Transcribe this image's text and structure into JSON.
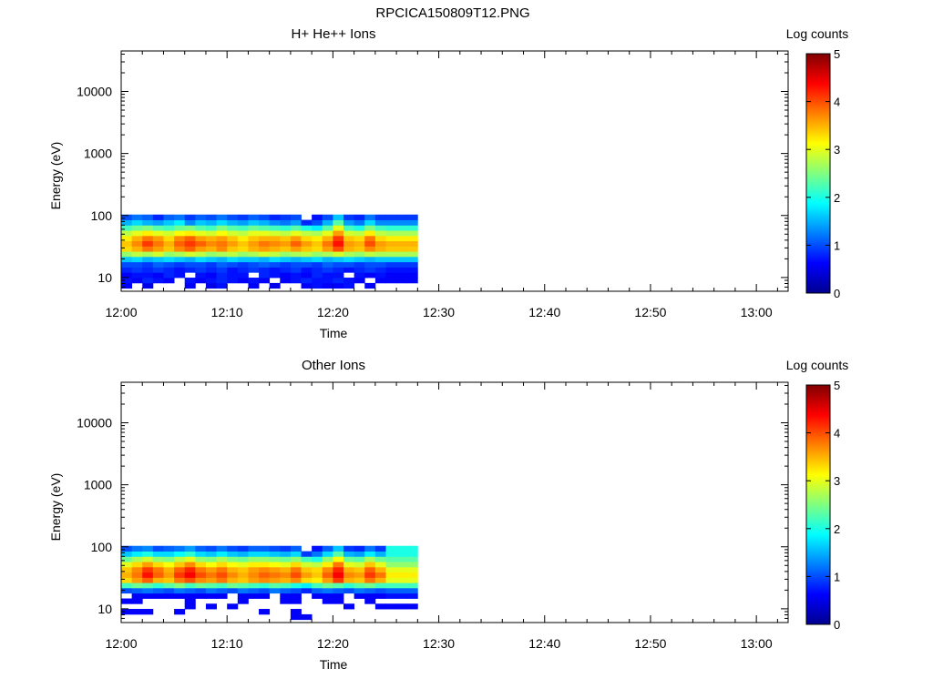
{
  "figure": {
    "title": "RPCICA150809T12.PNG"
  },
  "colors": {
    "colormap": [
      "#00008f",
      "#0000ff",
      "#0080ff",
      "#00ffff",
      "#80ff80",
      "#ffff00",
      "#ff8000",
      "#ff0000",
      "#800000"
    ],
    "axis": "#000000",
    "background": "#ffffff"
  },
  "chart_data": [
    {
      "type": "heatmap",
      "title": "H+ He++ Ions",
      "xlabel": "Time",
      "ylabel": "Energy (eV)",
      "x_range": [
        "12:00",
        "13:03"
      ],
      "x_ticks": [
        "12:00",
        "12:10",
        "12:20",
        "12:30",
        "12:40",
        "12:50",
        "13:00"
      ],
      "y_scale": "log",
      "y_range": [
        6,
        45000
      ],
      "y_ticks": [
        "10",
        "100",
        "1000",
        "10000"
      ],
      "colorbar": {
        "label": "Log counts",
        "range": [
          0,
          5
        ],
        "ticks": [
          "0",
          "1",
          "2",
          "3",
          "4",
          "5"
        ]
      },
      "time_bins": [
        "12:00:30",
        "12:01:30",
        "12:02:30",
        "12:03:30",
        "12:04:30",
        "12:05:30",
        "12:06:30",
        "12:07:30",
        "12:08:30",
        "12:09:30",
        "12:10:30",
        "12:11:30",
        "12:12:30",
        "12:13:30",
        "12:14:30",
        "12:15:30",
        "12:16:30",
        "12:17:30",
        "12:18:30",
        "12:19:30",
        "12:20:30",
        "12:21:30",
        "12:22:30",
        "12:23:30",
        "12:24:30",
        "12:25:30",
        "12:26:30",
        "12:27:30"
      ],
      "energy_bins_eV": [
        7.4,
        9.0,
        11,
        13.3,
        16.2,
        19.7,
        24,
        29,
        35.4,
        43,
        52,
        63.5,
        77,
        93.8
      ],
      "log_counts": [
        [
          0.6,
          null,
          0.5,
          null,
          null,
          null,
          0.6,
          null,
          0.5,
          0.7,
          null,
          null,
          0.6,
          null,
          0.5,
          null,
          null,
          0.6,
          0.7,
          0.6,
          0.6,
          0.7,
          null,
          0.6,
          null,
          null,
          null,
          null
        ],
        [
          0.7,
          0.6,
          0.8,
          0.7,
          0.6,
          null,
          0.7,
          0.6,
          0.7,
          0.8,
          0.7,
          0.6,
          0.7,
          0.6,
          null,
          0.6,
          0.7,
          0.8,
          0.7,
          0.7,
          0.8,
          0.7,
          0.6,
          null,
          0.6,
          0.6,
          0.6,
          0.6
        ],
        [
          0.6,
          0.7,
          0.7,
          0.6,
          0.8,
          0.7,
          null,
          0.7,
          0.6,
          0.8,
          0.7,
          0.7,
          null,
          0.8,
          0.7,
          0.6,
          0.7,
          0.6,
          0.8,
          0.7,
          0.7,
          null,
          0.7,
          0.6,
          0.7,
          0.6,
          0.6,
          0.6
        ],
        [
          0.8,
          0.9,
          0.8,
          0.9,
          0.8,
          0.7,
          0.8,
          0.9,
          0.8,
          0.9,
          0.7,
          0.8,
          0.9,
          0.8,
          0.7,
          0.8,
          0.9,
          0.7,
          0.8,
          0.9,
          0.8,
          0.7,
          0.8,
          0.9,
          0.8,
          0.7,
          0.7,
          0.7
        ],
        [
          1.0,
          1.0,
          0.9,
          1.1,
          1.0,
          0.9,
          1.0,
          1.0,
          0.9,
          1.1,
          1.0,
          0.9,
          1.0,
          1.1,
          1.0,
          0.9,
          1.0,
          1.0,
          0.9,
          1.1,
          1.0,
          1.0,
          0.9,
          1.0,
          1.0,
          0.9,
          0.9,
          0.9
        ],
        [
          1.6,
          1.7,
          1.5,
          1.6,
          1.7,
          1.6,
          1.5,
          1.7,
          1.6,
          1.5,
          1.7,
          1.6,
          1.6,
          1.5,
          1.7,
          1.6,
          1.5,
          1.6,
          1.7,
          1.5,
          1.6,
          1.7,
          1.6,
          1.5,
          1.6,
          1.6,
          1.6,
          1.6
        ],
        [
          2.6,
          2.8,
          2.7,
          2.9,
          2.6,
          2.7,
          2.9,
          2.8,
          2.6,
          2.7,
          2.8,
          2.6,
          2.7,
          2.9,
          2.8,
          2.6,
          2.7,
          2.8,
          2.6,
          2.7,
          2.9,
          2.7,
          2.6,
          2.8,
          2.7,
          2.7,
          2.7,
          2.7
        ],
        [
          3.3,
          3.5,
          3.8,
          3.6,
          3.4,
          3.7,
          3.9,
          3.6,
          3.5,
          3.7,
          3.4,
          3.3,
          3.5,
          3.6,
          3.5,
          3.4,
          3.6,
          3.4,
          3.3,
          3.6,
          4.0,
          3.5,
          3.4,
          3.7,
          3.5,
          3.4,
          3.4,
          3.4
        ],
        [
          3.4,
          3.7,
          4.1,
          3.8,
          3.5,
          3.9,
          4.1,
          3.9,
          3.7,
          3.8,
          3.6,
          3.4,
          3.6,
          3.8,
          3.7,
          3.6,
          3.9,
          3.6,
          3.4,
          3.8,
          4.3,
          3.6,
          3.5,
          4.0,
          3.6,
          3.5,
          3.5,
          3.5
        ],
        [
          3.2,
          3.5,
          3.8,
          3.6,
          3.3,
          3.7,
          3.9,
          3.6,
          3.5,
          3.6,
          3.4,
          3.2,
          3.4,
          3.5,
          3.5,
          3.4,
          3.6,
          3.3,
          3.2,
          3.5,
          4.1,
          3.4,
          3.3,
          3.8,
          3.3,
          3.2,
          3.2,
          3.2
        ],
        [
          2.8,
          3.0,
          3.2,
          3.0,
          2.9,
          3.1,
          3.2,
          3.0,
          2.9,
          3.1,
          2.9,
          2.8,
          3.0,
          3.0,
          2.9,
          2.8,
          3.0,
          2.8,
          2.7,
          3.0,
          3.6,
          2.9,
          2.8,
          3.2,
          2.8,
          2.7,
          2.7,
          2.7
        ],
        [
          2.2,
          2.4,
          2.5,
          2.3,
          2.2,
          2.4,
          2.5,
          2.3,
          2.2,
          2.5,
          2.3,
          2.2,
          2.4,
          2.3,
          2.2,
          2.1,
          2.3,
          2.0,
          1.8,
          2.3,
          3.0,
          2.2,
          2.0,
          2.5,
          2.2,
          2.1,
          2.1,
          2.1
        ],
        [
          1.5,
          1.7,
          1.5,
          1.4,
          1.6,
          1.8,
          1.3,
          1.6,
          1.5,
          1.7,
          1.5,
          1.4,
          1.6,
          1.5,
          1.3,
          1.2,
          1.4,
          0.8,
          1.0,
          1.5,
          2.3,
          1.4,
          1.2,
          1.7,
          1.3,
          1.3,
          1.3,
          1.3
        ],
        [
          1.0,
          1.2,
          1.1,
          0.8,
          1.1,
          1.2,
          0.9,
          1.1,
          1.0,
          1.2,
          1.0,
          0.9,
          1.1,
          1.0,
          0.8,
          0.9,
          1.0,
          null,
          0.7,
          1.0,
          1.6,
          0.9,
          0.8,
          1.2,
          0.9,
          0.9,
          0.9,
          0.9
        ]
      ]
    },
    {
      "type": "heatmap",
      "title": "Other Ions",
      "xlabel": "Time",
      "ylabel": "Energy (eV)",
      "x_range": [
        "12:00",
        "13:03"
      ],
      "x_ticks": [
        "12:00",
        "12:10",
        "12:20",
        "12:30",
        "12:40",
        "12:50",
        "13:00"
      ],
      "y_scale": "log",
      "y_range": [
        6,
        45000
      ],
      "y_ticks": [
        "10",
        "100",
        "1000",
        "10000"
      ],
      "colorbar": {
        "label": "Log counts",
        "range": [
          0,
          5
        ],
        "ticks": [
          "0",
          "1",
          "2",
          "3",
          "4",
          "5"
        ]
      },
      "time_bins": [
        "12:00:30",
        "12:01:30",
        "12:02:30",
        "12:03:30",
        "12:04:30",
        "12:05:30",
        "12:06:30",
        "12:07:30",
        "12:08:30",
        "12:09:30",
        "12:10:30",
        "12:11:30",
        "12:12:30",
        "12:13:30",
        "12:14:30",
        "12:15:30",
        "12:16:30",
        "12:17:30",
        "12:18:30",
        "12:19:30",
        "12:20:30",
        "12:21:30",
        "12:22:30",
        "12:23:30",
        "12:24:30",
        "12:25:30",
        "12:26:30",
        "12:27:30"
      ],
      "energy_bins_eV": [
        7.4,
        9.0,
        11,
        13.3,
        16.2,
        19.7,
        24,
        29,
        35.4,
        43,
        52,
        63.5,
        77,
        93.8
      ],
      "log_counts": [
        [
          null,
          null,
          null,
          null,
          null,
          null,
          null,
          null,
          null,
          null,
          null,
          null,
          null,
          null,
          null,
          null,
          0.6,
          0.6,
          null,
          null,
          null,
          null,
          null,
          null,
          null,
          null,
          null,
          null
        ],
        [
          0.6,
          0.6,
          0.6,
          null,
          null,
          0.6,
          null,
          null,
          null,
          null,
          null,
          null,
          null,
          0.6,
          null,
          null,
          0.6,
          null,
          null,
          null,
          null,
          null,
          null,
          null,
          null,
          null,
          null,
          null
        ],
        [
          null,
          null,
          null,
          null,
          null,
          null,
          0.6,
          null,
          0.6,
          null,
          0.6,
          null,
          null,
          null,
          null,
          null,
          null,
          null,
          null,
          null,
          null,
          0.6,
          null,
          null,
          0.6,
          0.6,
          0.6,
          0.6
        ],
        [
          0.6,
          0.6,
          null,
          null,
          null,
          null,
          0.6,
          null,
          null,
          null,
          null,
          0.6,
          null,
          null,
          null,
          0.6,
          0.6,
          null,
          null,
          0.6,
          0.6,
          null,
          null,
          0.6,
          null,
          null,
          null,
          null
        ],
        [
          null,
          0.6,
          0.6,
          0.6,
          0.6,
          0.6,
          0.6,
          0.6,
          0.6,
          0.6,
          null,
          0.6,
          0.6,
          0.6,
          null,
          0.6,
          0.6,
          null,
          0.6,
          0.6,
          0.6,
          null,
          0.6,
          0.6,
          0.6,
          0.7,
          0.7,
          0.7
        ],
        [
          1.0,
          1.1,
          1.2,
          1.1,
          1.0,
          1.2,
          1.1,
          1.0,
          1.2,
          1.1,
          1.0,
          1.2,
          1.1,
          1.0,
          1.2,
          1.1,
          1.0,
          0.8,
          1.1,
          1.2,
          1.1,
          1.0,
          1.2,
          1.1,
          1.0,
          1.1,
          1.1,
          1.1
        ],
        [
          2.2,
          2.4,
          2.3,
          2.1,
          2.3,
          2.5,
          2.2,
          2.4,
          2.3,
          2.2,
          2.4,
          2.3,
          2.2,
          2.1,
          2.3,
          2.2,
          2.0,
          1.8,
          2.2,
          2.4,
          2.3,
          2.1,
          2.3,
          2.4,
          2.2,
          2.2,
          2.2,
          2.2
        ],
        [
          3.3,
          3.6,
          3.9,
          3.5,
          3.4,
          3.8,
          4.0,
          3.7,
          3.6,
          3.8,
          3.5,
          3.4,
          3.6,
          3.7,
          3.6,
          3.5,
          3.7,
          3.3,
          3.2,
          3.6,
          4.1,
          3.5,
          3.4,
          3.8,
          3.5,
          3.0,
          3.0,
          3.0
        ],
        [
          3.5,
          3.8,
          4.3,
          3.9,
          3.6,
          4.1,
          4.4,
          4.0,
          3.8,
          4.0,
          3.7,
          3.5,
          3.7,
          3.9,
          3.8,
          3.7,
          4.0,
          3.6,
          3.4,
          3.9,
          4.4,
          3.7,
          3.6,
          4.1,
          3.8,
          3.2,
          3.2,
          3.2
        ],
        [
          3.4,
          3.7,
          4.1,
          3.8,
          3.5,
          3.9,
          4.2,
          3.8,
          3.6,
          3.8,
          3.5,
          3.4,
          3.6,
          3.7,
          3.6,
          3.5,
          3.8,
          3.4,
          3.3,
          3.7,
          4.2,
          3.5,
          3.4,
          3.9,
          3.5,
          3.0,
          3.0,
          3.0
        ],
        [
          3.0,
          3.3,
          3.6,
          3.3,
          3.1,
          3.4,
          3.7,
          3.3,
          3.1,
          3.3,
          3.1,
          3.0,
          3.2,
          3.2,
          3.1,
          3.0,
          3.3,
          2.9,
          2.8,
          3.2,
          3.8,
          3.0,
          2.9,
          3.4,
          3.0,
          2.6,
          2.6,
          2.6
        ],
        [
          2.4,
          2.7,
          2.9,
          2.6,
          2.5,
          2.8,
          3.0,
          2.6,
          2.5,
          2.7,
          2.5,
          2.4,
          2.6,
          2.6,
          2.5,
          2.4,
          2.6,
          2.2,
          2.0,
          2.6,
          3.1,
          2.4,
          2.3,
          2.7,
          2.4,
          2.3,
          2.3,
          2.3
        ],
        [
          1.6,
          1.8,
          2.0,
          1.7,
          1.7,
          1.9,
          2.1,
          1.7,
          1.6,
          1.8,
          1.6,
          1.5,
          1.7,
          1.7,
          1.6,
          1.5,
          1.7,
          0.9,
          1.2,
          1.7,
          2.3,
          1.5,
          1.4,
          1.8,
          1.5,
          2.0,
          2.0,
          2.0
        ],
        [
          1.0,
          1.2,
          1.3,
          1.0,
          1.1,
          1.2,
          1.4,
          1.1,
          1.0,
          1.2,
          1.0,
          0.9,
          1.1,
          1.1,
          1.0,
          0.9,
          1.1,
          null,
          0.7,
          1.1,
          1.6,
          0.9,
          0.8,
          1.2,
          0.9,
          2.0,
          2.0,
          2.0
        ]
      ]
    }
  ]
}
